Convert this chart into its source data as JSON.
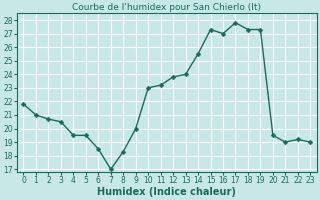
{
  "x": [
    0,
    1,
    2,
    3,
    4,
    5,
    6,
    7,
    8,
    9,
    10,
    11,
    12,
    13,
    14,
    15,
    16,
    17,
    18,
    19,
    20,
    21,
    22,
    23
  ],
  "y": [
    21.8,
    21.0,
    20.7,
    20.5,
    19.5,
    19.5,
    18.5,
    17.0,
    18.3,
    20.0,
    23.0,
    23.2,
    23.8,
    24.0,
    25.5,
    27.3,
    27.0,
    27.8,
    27.3,
    27.3,
    19.5,
    19.0,
    19.2,
    19.0
  ],
  "line_color": "#1a6b5a",
  "marker": "D",
  "marker_size": 2.5,
  "bg_color": "#c8e8e8",
  "grid_color": "#ffffff",
  "title": "Courbe de l'humidex pour San Chierlo (It)",
  "xlabel": "Humidex (Indice chaleur)",
  "ylabel": "",
  "xlim": [
    -0.5,
    23.5
  ],
  "ylim": [
    16.8,
    28.5
  ],
  "yticks": [
    17,
    18,
    19,
    20,
    21,
    22,
    23,
    24,
    25,
    26,
    27,
    28
  ],
  "xticks": [
    0,
    1,
    2,
    3,
    4,
    5,
    6,
    7,
    8,
    9,
    10,
    11,
    12,
    13,
    14,
    15,
    16,
    17,
    18,
    19,
    20,
    21,
    22,
    23
  ],
  "title_fontsize": 6.5,
  "label_fontsize": 7,
  "tick_fontsize": 5.5
}
